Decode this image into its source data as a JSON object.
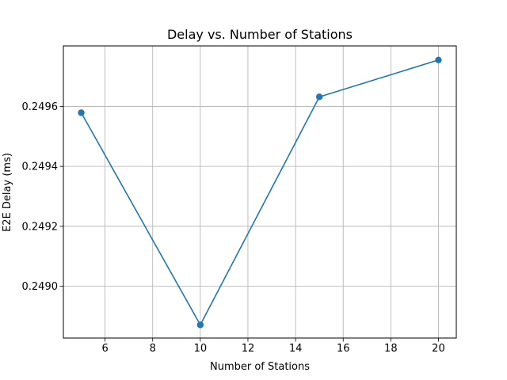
{
  "chart_data": {
    "type": "line",
    "title": "Delay vs. Number of Stations",
    "xlabel": "Number of Stations",
    "ylabel": "E2E Delay (ms)",
    "xlim": [
      4.25,
      20.75
    ],
    "ylim": [
      0.248827,
      0.249802
    ],
    "xticks": [
      6,
      8,
      10,
      12,
      14,
      16,
      18,
      20
    ],
    "yticks": [
      0.249,
      0.2492,
      0.2494,
      0.2496
    ],
    "ytick_labels": [
      "0.2490",
      "0.2492",
      "0.2494",
      "0.2496"
    ],
    "grid": true,
    "series": [
      {
        "x": [
          5,
          10,
          15,
          20
        ],
        "values": [
          0.249579,
          0.248871,
          0.249632,
          0.249755
        ],
        "color": "#1f77b4",
        "marker": "circle"
      }
    ]
  }
}
